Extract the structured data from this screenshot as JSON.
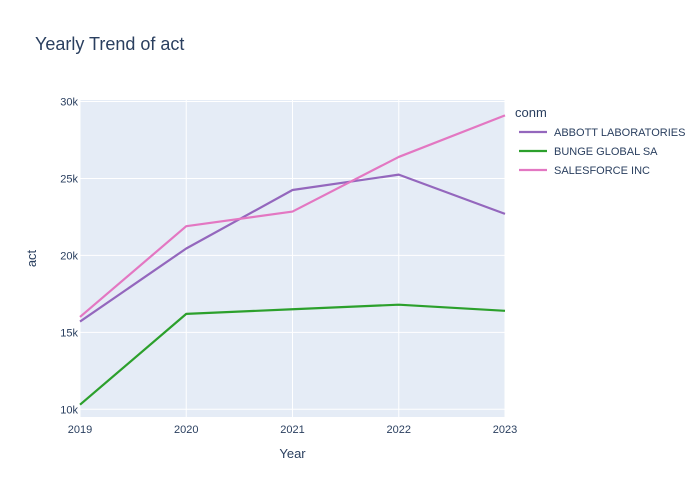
{
  "chart_data": {
    "type": "line",
    "title": "Yearly Trend of act",
    "xlabel": "Year",
    "ylabel": "act",
    "x": [
      2019,
      2020,
      2021,
      2022,
      2023
    ],
    "xticks": [
      "2019",
      "2020",
      "2021",
      "2022",
      "2023"
    ],
    "ylim": [
      9500,
      30100
    ],
    "yticks": [
      10000,
      15000,
      20000,
      25000,
      30000
    ],
    "ytick_labels": [
      "10k",
      "15k",
      "20k",
      "25k",
      "30k"
    ],
    "grid": true,
    "legend_title": "conm",
    "legend_position": "right",
    "series": [
      {
        "name": "ABBOTT LABORATORIES",
        "color": "#9467bd",
        "values": [
          15700,
          20450,
          24250,
          25250,
          22700
        ]
      },
      {
        "name": "BUNGE GLOBAL SA",
        "color": "#2ca02c",
        "values": [
          10300,
          16200,
          16500,
          16800,
          16400
        ]
      },
      {
        "name": "SALESFORCE INC",
        "color": "#e377c2",
        "values": [
          16000,
          21900,
          22850,
          26400,
          29100
        ]
      }
    ],
    "plot_bg": "#e5ecf6"
  }
}
